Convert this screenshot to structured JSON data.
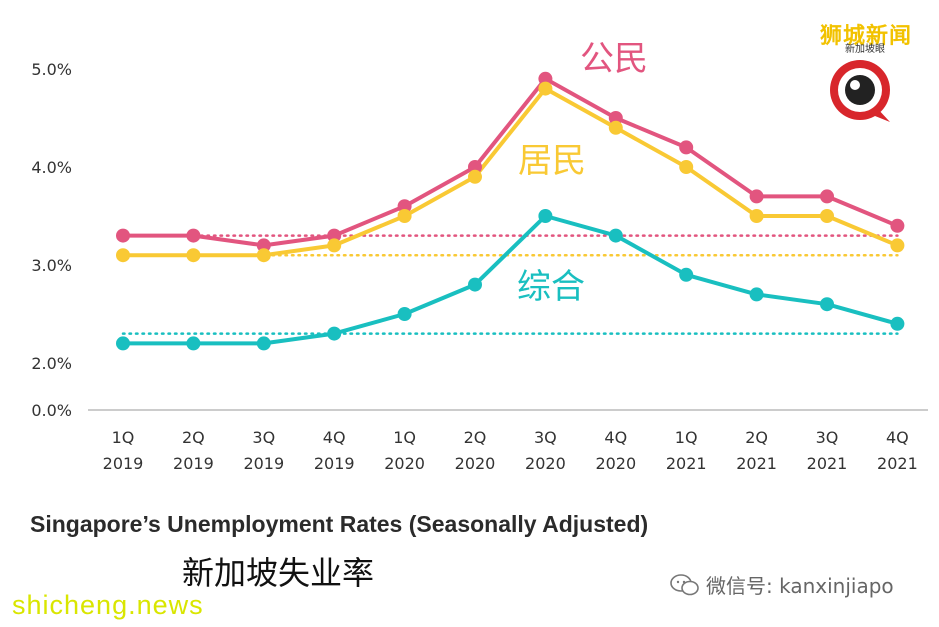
{
  "chart_data": {
    "type": "line",
    "title": "Singapore’s Unemployment Rates (Seasonally Adjusted)",
    "title_zh": "新加坡失业率",
    "xlabel": "",
    "ylabel": "",
    "categories": [
      [
        "1Q",
        "2019"
      ],
      [
        "2Q",
        "2019"
      ],
      [
        "3Q",
        "2019"
      ],
      [
        "4Q",
        "2019"
      ],
      [
        "1Q",
        "2020"
      ],
      [
        "2Q",
        "2020"
      ],
      [
        "3Q",
        "2020"
      ],
      [
        "4Q",
        "2020"
      ],
      [
        "1Q",
        "2021"
      ],
      [
        "2Q",
        "2021"
      ],
      [
        "3Q",
        "2021"
      ],
      [
        "4Q",
        "2021"
      ]
    ],
    "y_ticks": [
      "0.0%",
      "2.0%",
      "3.0%",
      "4.0%",
      "5.0%"
    ],
    "series": [
      {
        "name": "公民",
        "color": "#e2557f",
        "values": [
          3.3,
          3.3,
          3.2,
          3.3,
          3.6,
          4.0,
          4.9,
          4.5,
          4.2,
          3.7,
          3.7,
          3.4
        ],
        "baseline": 3.3
      },
      {
        "name": "居民",
        "color": "#f9c934",
        "values": [
          3.1,
          3.1,
          3.1,
          3.2,
          3.5,
          3.9,
          4.8,
          4.4,
          4.0,
          3.5,
          3.5,
          3.2
        ],
        "baseline": 3.1
      },
      {
        "name": "综合",
        "color": "#19bfc0",
        "values": [
          2.2,
          2.2,
          2.2,
          2.3,
          2.5,
          2.8,
          3.5,
          3.3,
          2.9,
          2.7,
          2.6,
          2.4
        ],
        "baseline": 2.3
      }
    ]
  },
  "watermarks": {
    "brand_cn": "狮城新闻",
    "brand_sub": "新加坡眼",
    "wechat": "微信号: kanxinjiapo",
    "site": "shicheng.news"
  }
}
